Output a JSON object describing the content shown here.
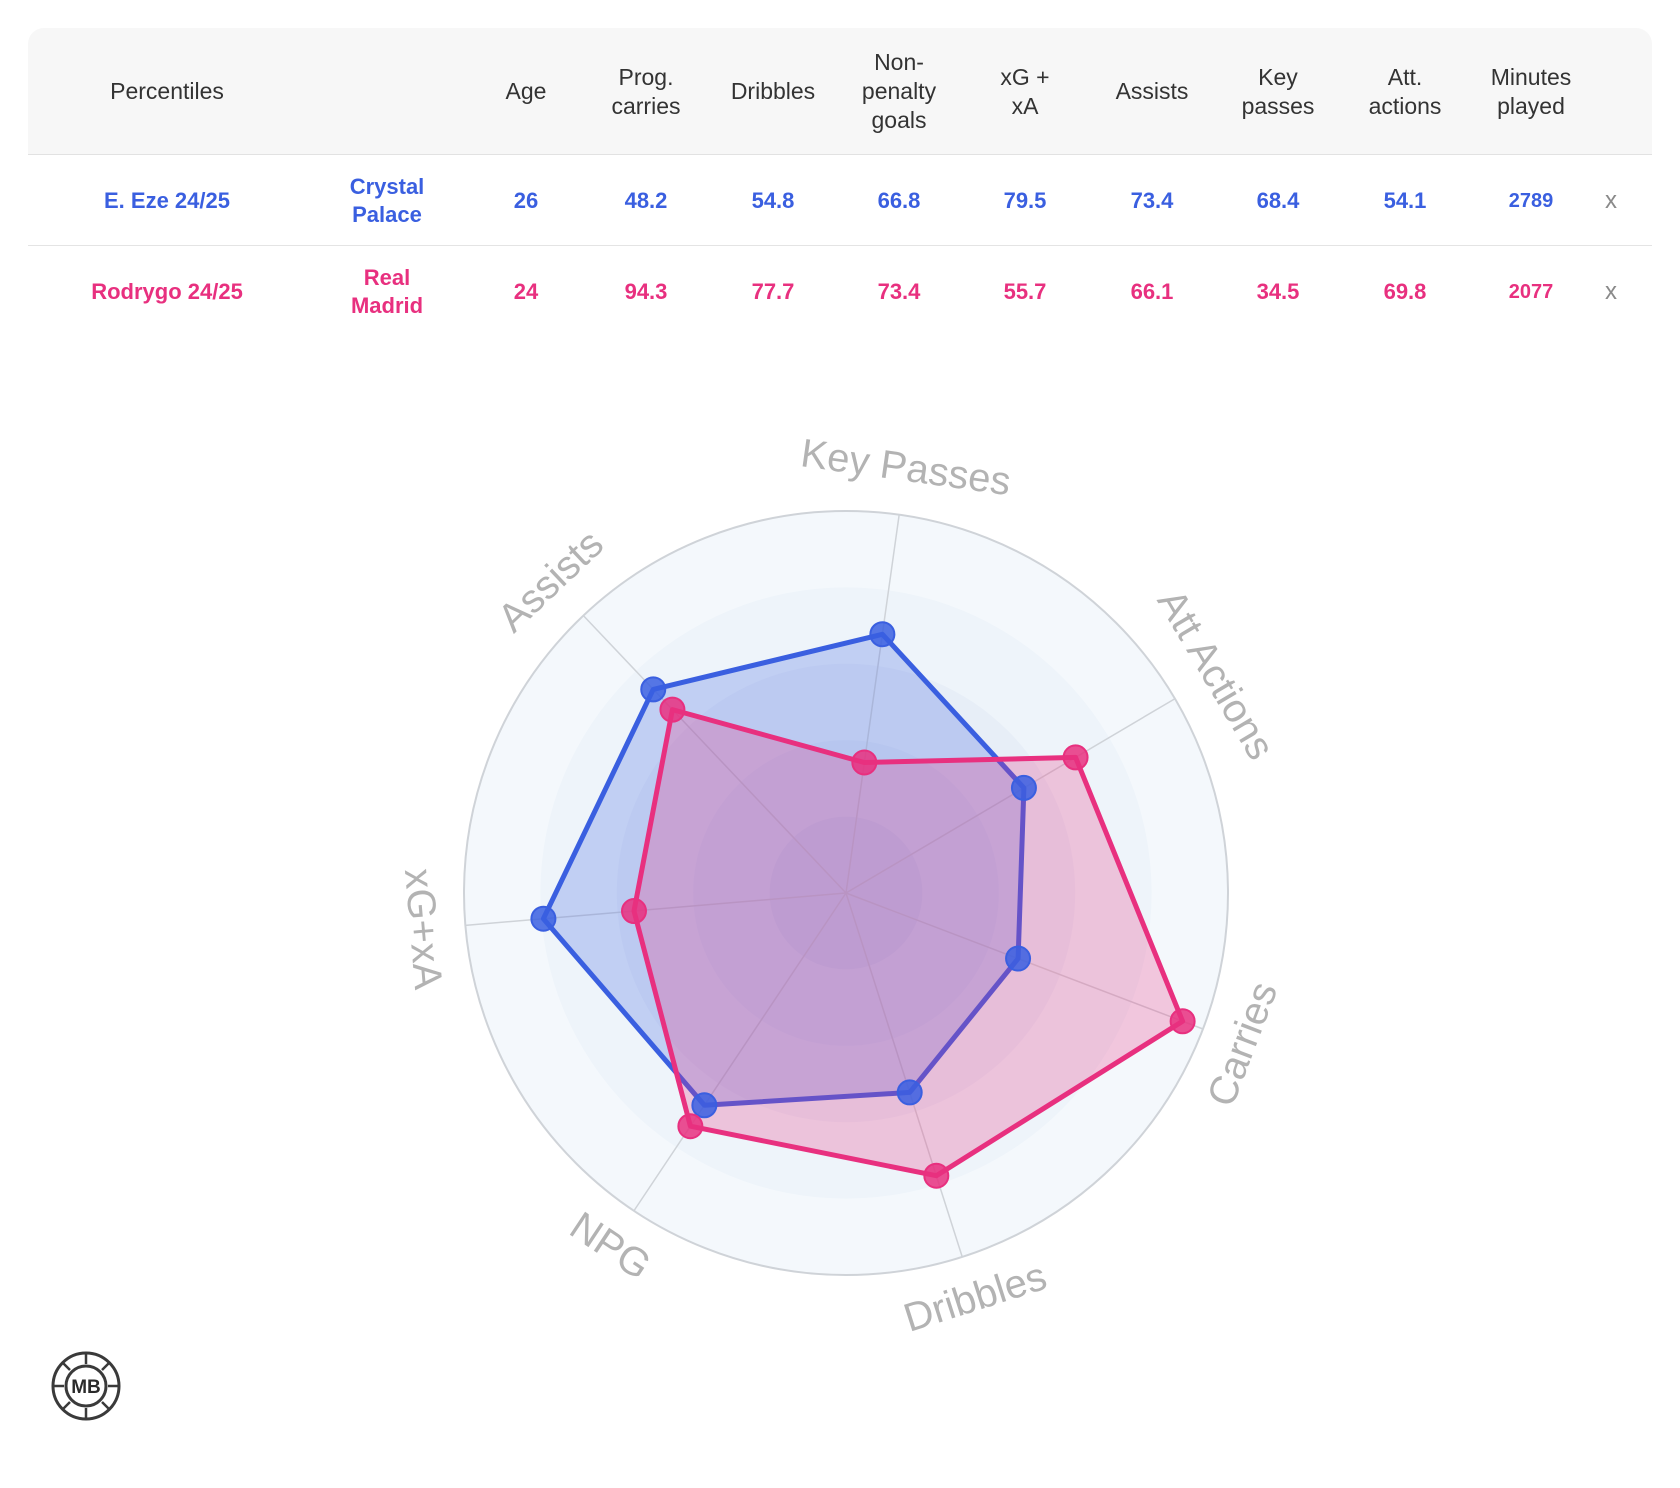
{
  "table": {
    "headers": [
      "Percentiles",
      "",
      "Age",
      "Prog. carries",
      "Dribbles",
      "Non-penalty goals",
      "xG + xA",
      "Assists",
      "Key passes",
      "Att. actions",
      "Minutes played"
    ],
    "rows": [
      {
        "player": "E. Eze 24/25",
        "team": "Crystal Palace",
        "color": "#3a5fe0",
        "values": [
          "26",
          "48.2",
          "54.8",
          "66.8",
          "79.5",
          "73.4",
          "68.4",
          "54.1",
          "2789"
        ],
        "remove": "x"
      },
      {
        "player": "Rodrygo 24/25",
        "team": "Real Madrid",
        "color": "#e8307f",
        "values": [
          "24",
          "94.3",
          "77.7",
          "73.4",
          "55.7",
          "66.1",
          "34.5",
          "69.8",
          "2077"
        ],
        "remove": "x"
      }
    ]
  },
  "chart_data": {
    "type": "radar",
    "axes": [
      "Key Passes",
      "Att Actions",
      "Carries",
      "Dribbles",
      "NPG",
      "xG+xA",
      "Assists"
    ],
    "range": [
      0,
      100
    ],
    "series": [
      {
        "name": "E. Eze 24/25",
        "color": "#3a5fe0",
        "values": [
          68.4,
          54.1,
          48.2,
          54.8,
          66.8,
          79.5,
          73.4
        ]
      },
      {
        "name": "Rodrygo 24/25",
        "color": "#e8307f",
        "values": [
          34.5,
          69.8,
          94.3,
          77.7,
          73.4,
          55.7,
          66.1
        ]
      }
    ]
  },
  "logo": {
    "text": "MB"
  }
}
